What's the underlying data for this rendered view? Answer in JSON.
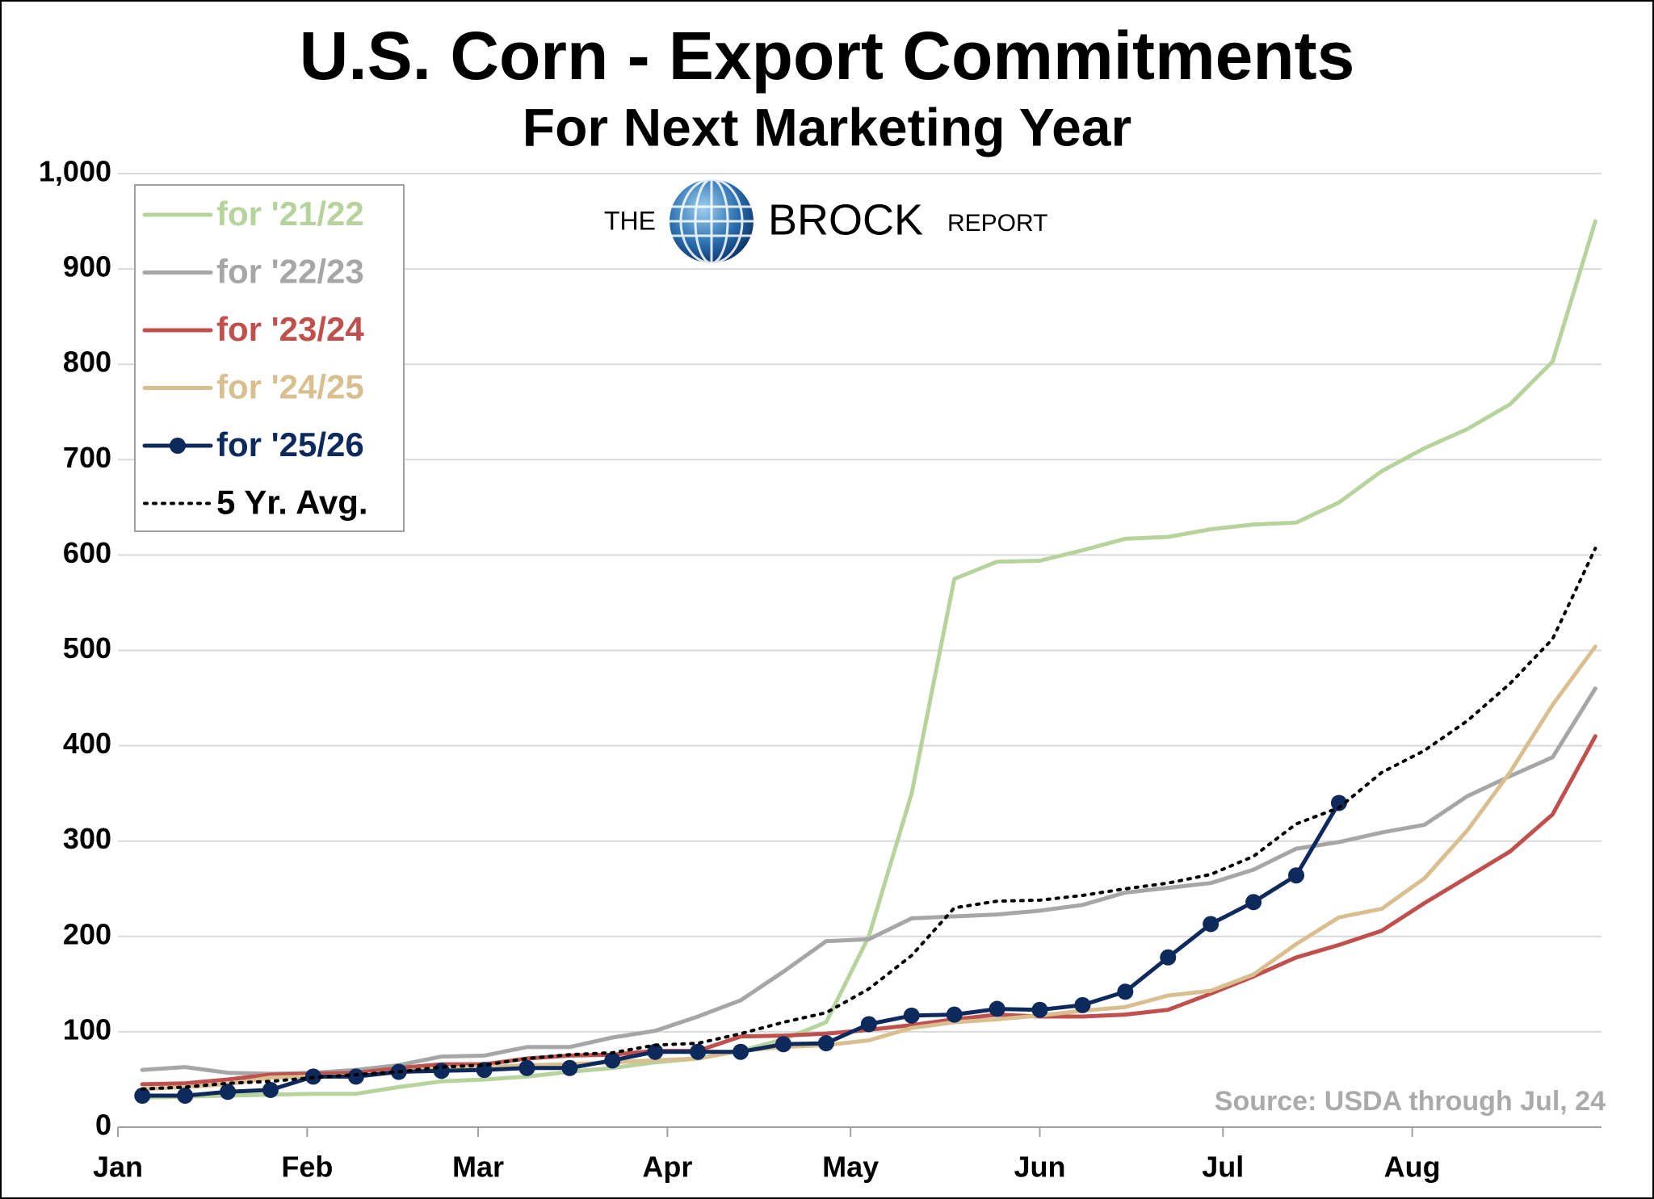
{
  "chart_data": {
    "type": "line",
    "title": "U.S. Corn - Export Commitments",
    "subtitle": "For Next Marketing Year",
    "logo": {
      "left": "THE",
      "middle": "BROCK",
      "right": "REPORT"
    },
    "source": "Source: USDA through Jul, 24",
    "x": [
      4,
      11,
      18,
      25,
      32,
      39,
      46,
      53,
      60,
      67,
      74,
      81,
      88,
      95,
      102,
      109,
      116,
      123,
      130,
      137,
      144,
      151,
      158,
      165,
      172,
      179,
      186,
      193,
      200,
      207,
      214,
      221,
      228,
      235,
      242
    ],
    "xlim": [
      0,
      243
    ],
    "xticks": [
      {
        "value": 0,
        "label": "Jan"
      },
      {
        "value": 31,
        "label": "Feb"
      },
      {
        "value": 59,
        "label": "Mar"
      },
      {
        "value": 90,
        "label": "Apr"
      },
      {
        "value": 120,
        "label": "May"
      },
      {
        "value": 151,
        "label": "Jun"
      },
      {
        "value": 181,
        "label": "Jul"
      },
      {
        "value": 212,
        "label": "Aug"
      }
    ],
    "ylim": [
      0,
      1000
    ],
    "yticks": [
      0,
      100,
      200,
      300,
      400,
      500,
      600,
      700,
      800,
      900,
      {
        "value": 1000,
        "label": "1,000"
      }
    ],
    "grid": true,
    "legend": "upper left",
    "series": [
      {
        "name": "for '21/22",
        "color": "#b5d39a",
        "style": "solid",
        "values": [
          31,
          32,
          33,
          34,
          35,
          35,
          42,
          48,
          50,
          53,
          58,
          62,
          68,
          72,
          80,
          92,
          110,
          200,
          350,
          575,
          593,
          594,
          605,
          617,
          619,
          627,
          632,
          634,
          655,
          688,
          712,
          732,
          758,
          803,
          950
        ]
      },
      {
        "name": "for '22/23",
        "color": "#a6a6a6",
        "style": "solid",
        "values": [
          60,
          63,
          57,
          56,
          57,
          60,
          65,
          74,
          75,
          84,
          84,
          94,
          101,
          116,
          133,
          163,
          195,
          197,
          219,
          221,
          223,
          227,
          233,
          246,
          251,
          256,
          270,
          292,
          299,
          309,
          317,
          347,
          368,
          388,
          460
        ]
      },
      {
        "name": "for '23/24",
        "color": "#c0504d",
        "style": "solid",
        "values": [
          45,
          46,
          50,
          55,
          56,
          57,
          62,
          66,
          66,
          72,
          75,
          76,
          80,
          80,
          95,
          96,
          98,
          102,
          107,
          113,
          118,
          116,
          116,
          118,
          123,
          140,
          158,
          178,
          191,
          206,
          235,
          262,
          289,
          328,
          410
        ]
      },
      {
        "name": "for '24/25",
        "color": "#d9bf8f",
        "style": "solid",
        "values": [
          40,
          42,
          45,
          52,
          53,
          54,
          58,
          62,
          63,
          65,
          66,
          68,
          70,
          72,
          80,
          84,
          86,
          91,
          104,
          110,
          113,
          117,
          122,
          126,
          138,
          143,
          160,
          192,
          220,
          229,
          261,
          311,
          372,
          443,
          504
        ]
      },
      {
        "name": "for '25/26",
        "color": "#0e2a5c",
        "style": "solid",
        "marker": "circle",
        "values": [
          33,
          33,
          37,
          39,
          53,
          53,
          58,
          59,
          60,
          62,
          62,
          70,
          79,
          79,
          79,
          87,
          88,
          108,
          117,
          118,
          124,
          123,
          128,
          142,
          178,
          213,
          236,
          264,
          340,
          null,
          null,
          null,
          null,
          null,
          null
        ]
      },
      {
        "name": "5 Yr. Avg.",
        "color": "#000000",
        "style": "dotted",
        "values": [
          40,
          42,
          46,
          48,
          52,
          55,
          58,
          63,
          65,
          72,
          76,
          78,
          86,
          88,
          98,
          110,
          120,
          145,
          180,
          230,
          237,
          238,
          243,
          250,
          256,
          265,
          284,
          318,
          335,
          372,
          395,
          426,
          465,
          512,
          607
        ]
      }
    ]
  }
}
